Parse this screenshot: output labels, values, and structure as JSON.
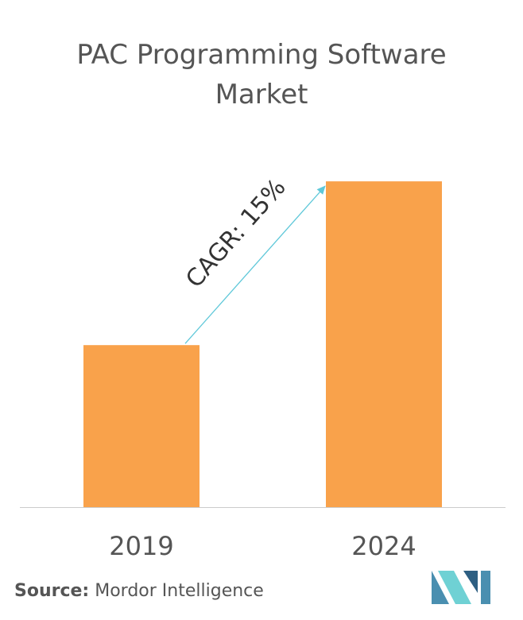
{
  "chart_data": {
    "type": "bar",
    "title_lines": [
      "PAC Programming Software",
      "Market"
    ],
    "categories": [
      "2019",
      "2024"
    ],
    "values": [
      1,
      2.011
    ],
    "ylim": [
      0,
      2.1
    ],
    "grid": false,
    "annotation": "CAGR: 15%",
    "bar_color": "#f9a24b",
    "arrow_color": "#5fc8d9",
    "axis_color": "#cccccc"
  },
  "footer": {
    "source_label": "Source:",
    "source_value": "Mordor Intelligence"
  },
  "logo": {
    "icon": "mordor-intelligence-logo",
    "colors": [
      "#4a8fb0",
      "#6fd1d4",
      "#2e5f82"
    ]
  }
}
